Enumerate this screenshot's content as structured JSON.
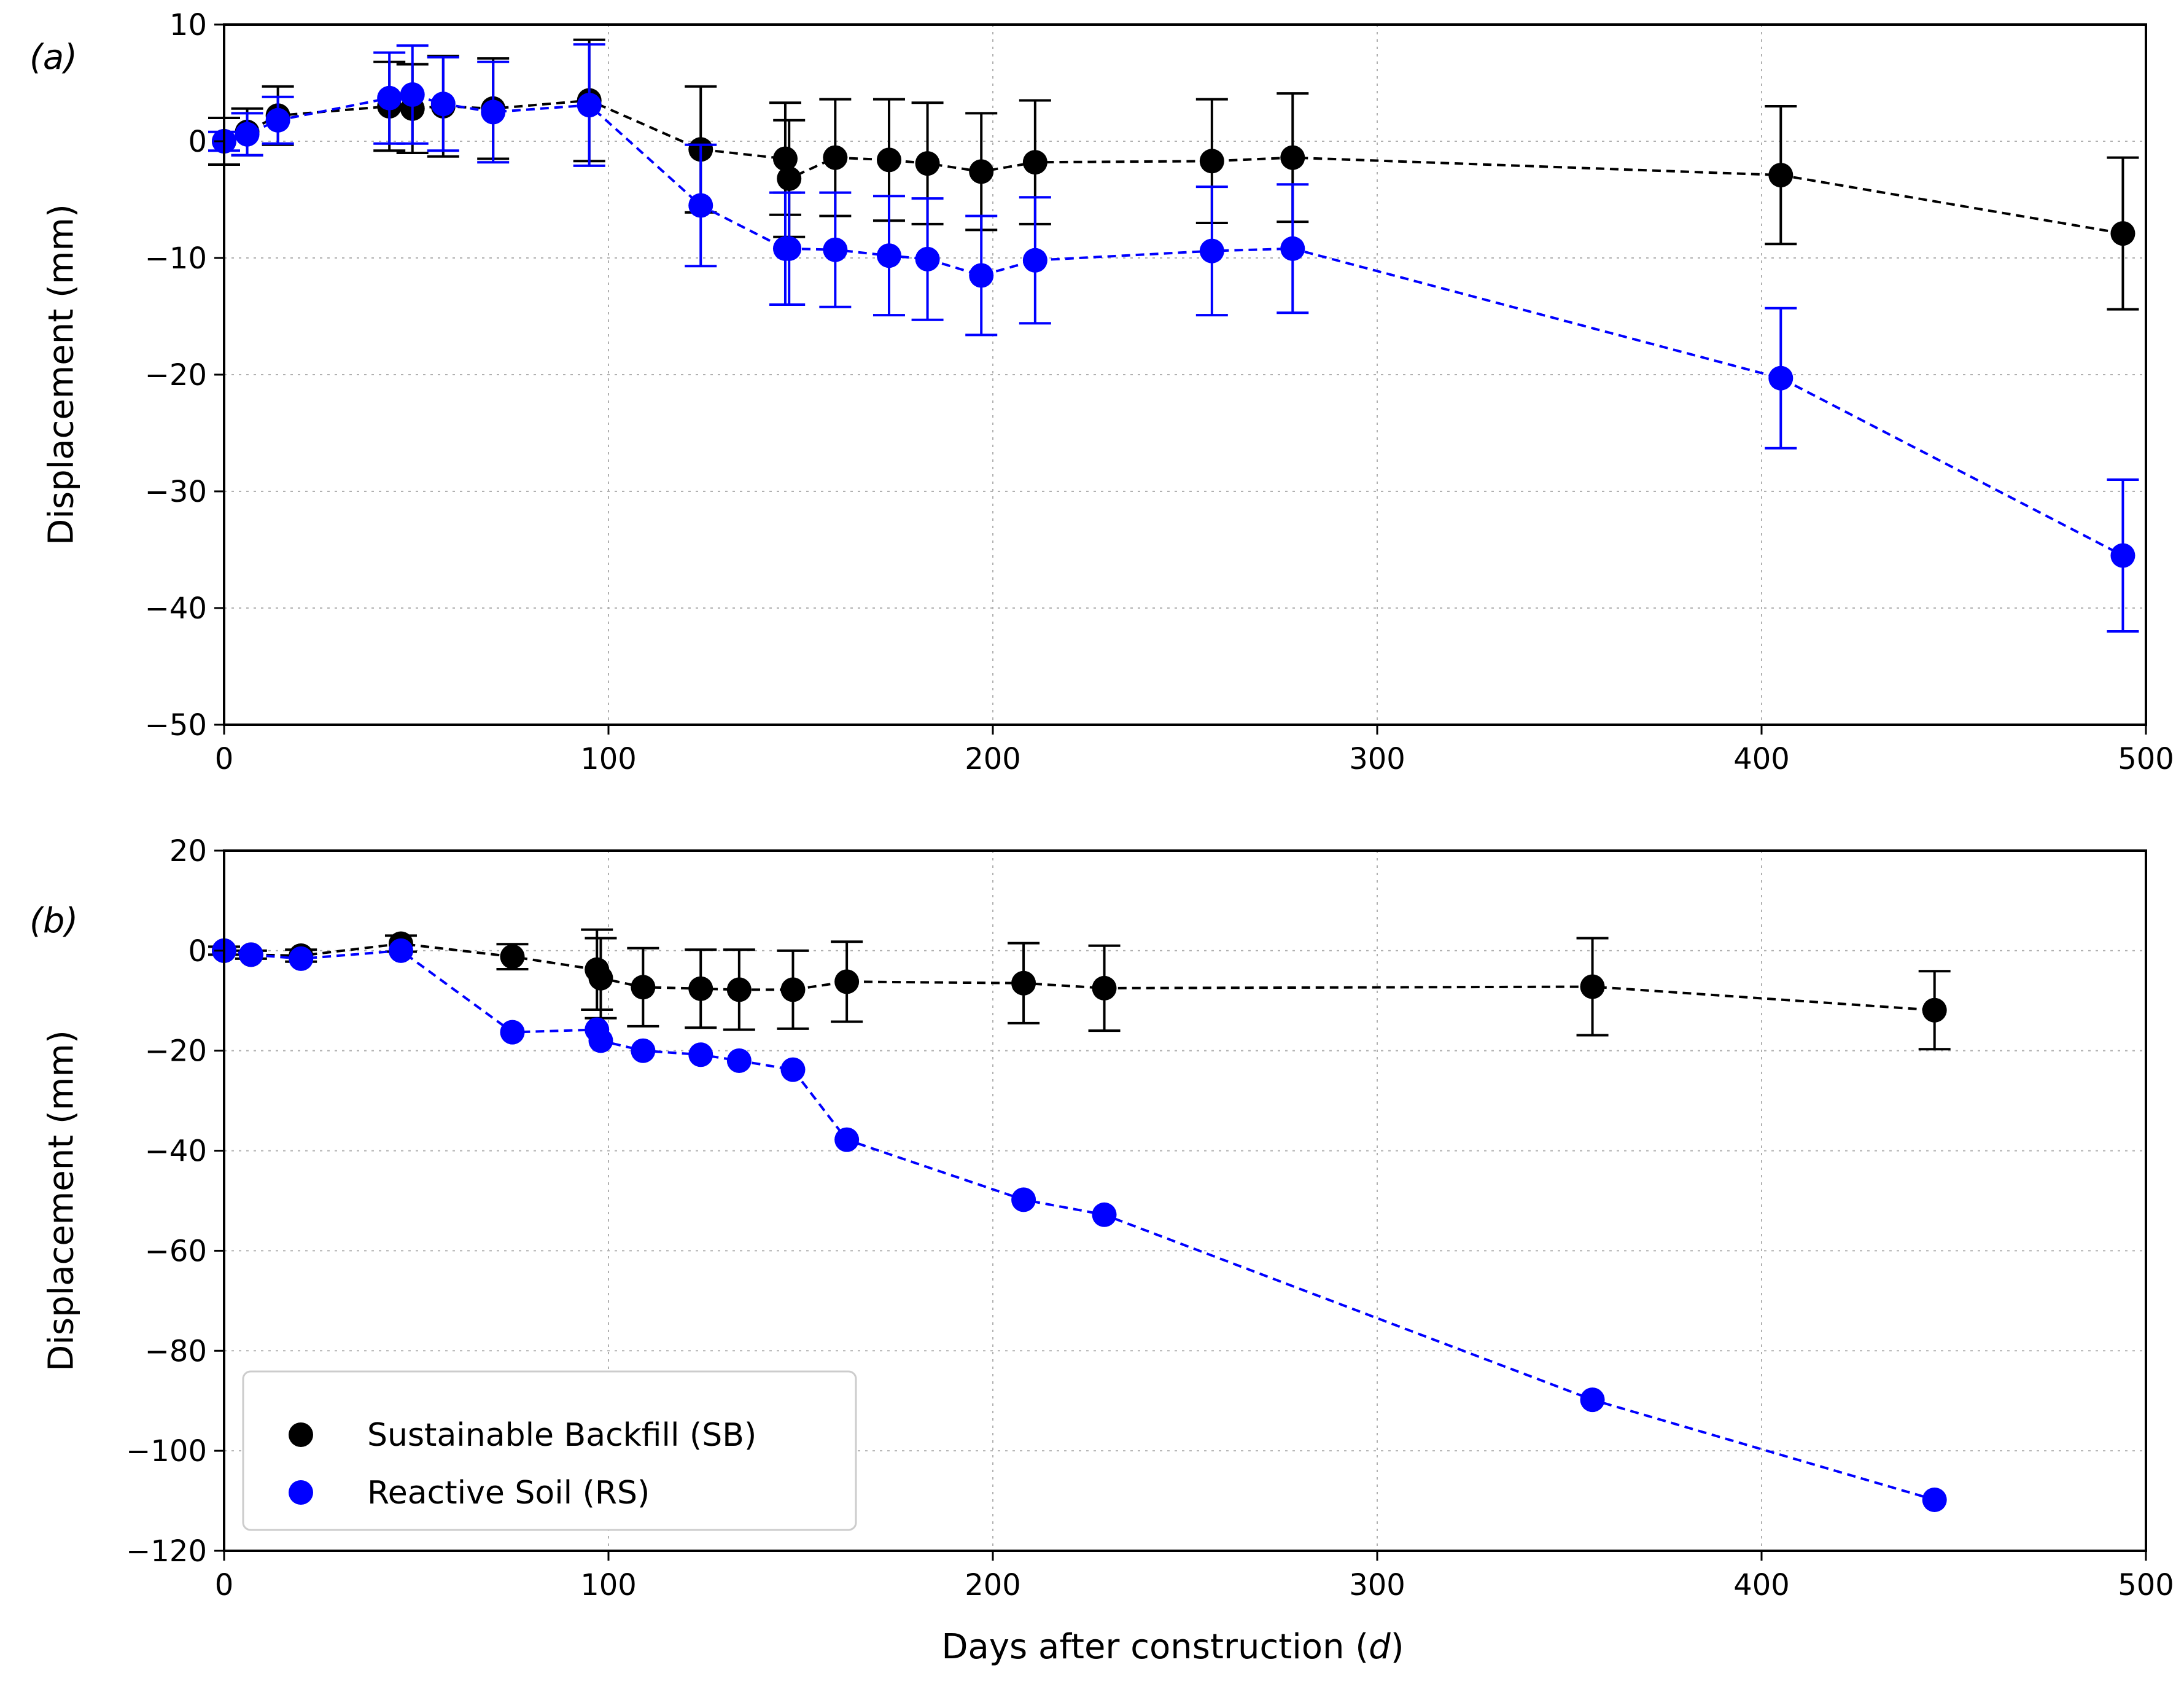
{
  "xlabel": "Days after construction (d)",
  "colors": {
    "sb": "#000000",
    "rs": "#0000ff",
    "grid": "#b0b0b0",
    "legend_edge": "#cccccc"
  },
  "legend": {
    "placement": "lower-left of panel b",
    "items": [
      "Sustainable Backfill (SB)",
      "Reactive Soil (RS)"
    ]
  },
  "chart_data": [
    {
      "type": "line",
      "panel": "(a)",
      "title": "",
      "xlabel": "",
      "ylabel": "Displacement (mm)",
      "xlim": [
        0,
        500
      ],
      "ylim": [
        -50,
        10
      ],
      "xticks": [
        0,
        100,
        200,
        300,
        400,
        500
      ],
      "yticks": [
        10,
        0,
        -10,
        -20,
        -30,
        -40,
        -50
      ],
      "grid": true,
      "series": [
        {
          "name": "Sustainable Backfill (SB)",
          "color": "#000000",
          "points": [
            {
              "x": 0,
              "y": 0,
              "err": 2
            },
            {
              "x": 6,
              "y": 0.8,
              "err": 2
            },
            {
              "x": 14,
              "y": 2.2,
              "err": 2.5
            },
            {
              "x": 43,
              "y": 3.0,
              "err": 3.8
            },
            {
              "x": 49,
              "y": 2.8,
              "err": 3.8
            },
            {
              "x": 57,
              "y": 3.0,
              "err": 4.3
            },
            {
              "x": 70,
              "y": 2.8,
              "err": 4.3
            },
            {
              "x": 95,
              "y": 3.5,
              "err": 5.2
            },
            {
              "x": 124,
              "y": -0.7,
              "err": 5.4
            },
            {
              "x": 146,
              "y": -1.5,
              "err": 4.8
            },
            {
              "x": 147,
              "y": -3.2,
              "err": 5.0
            },
            {
              "x": 159,
              "y": -1.4,
              "err": 5.0
            },
            {
              "x": 173,
              "y": -1.6,
              "err": 5.2
            },
            {
              "x": 183,
              "y": -1.9,
              "err": 5.2
            },
            {
              "x": 197,
              "y": -2.6,
              "err": 5.0
            },
            {
              "x": 211,
              "y": -1.8,
              "err": 5.3
            },
            {
              "x": 257,
              "y": -1.7,
              "err": 5.3
            },
            {
              "x": 278,
              "y": -1.4,
              "err": 5.5
            },
            {
              "x": 405,
              "y": -2.9,
              "err": 5.9
            },
            {
              "x": 494,
              "y": -7.9,
              "err": 6.5
            }
          ]
        },
        {
          "name": "Reactive Soil (RS)",
          "color": "#0000ff",
          "points": [
            {
              "x": 0,
              "y": 0,
              "err": 0.8
            },
            {
              "x": 6,
              "y": 0.6,
              "err": 1.8
            },
            {
              "x": 14,
              "y": 1.8,
              "err": 2.0
            },
            {
              "x": 43,
              "y": 3.7,
              "err": 3.9
            },
            {
              "x": 49,
              "y": 4.0,
              "err": 4.2
            },
            {
              "x": 57,
              "y": 3.2,
              "err": 4.0
            },
            {
              "x": 70,
              "y": 2.5,
              "err": 4.3
            },
            {
              "x": 95,
              "y": 3.1,
              "err": 5.2
            },
            {
              "x": 124,
              "y": -5.5,
              "err": 5.2
            },
            {
              "x": 146,
              "y": -9.2,
              "err": 4.8
            },
            {
              "x": 147,
              "y": -9.2,
              "err": 4.8
            },
            {
              "x": 159,
              "y": -9.3,
              "err": 4.9
            },
            {
              "x": 173,
              "y": -9.8,
              "err": 5.1
            },
            {
              "x": 183,
              "y": -10.1,
              "err": 5.2
            },
            {
              "x": 197,
              "y": -11.5,
              "err": 5.1
            },
            {
              "x": 211,
              "y": -10.2,
              "err": 5.4
            },
            {
              "x": 257,
              "y": -9.4,
              "err": 5.5
            },
            {
              "x": 278,
              "y": -9.2,
              "err": 5.5
            },
            {
              "x": 405,
              "y": -20.3,
              "err": 6.0
            },
            {
              "x": 494,
              "y": -35.5,
              "err": 6.5
            }
          ]
        }
      ]
    },
    {
      "type": "line",
      "panel": "(b)",
      "title": "",
      "xlabel": "Days after construction (d)",
      "ylabel": "Displacement (mm)",
      "xlim": [
        0,
        500
      ],
      "ylim": [
        -120,
        20
      ],
      "xticks": [
        0,
        100,
        200,
        300,
        400,
        500
      ],
      "yticks": [
        20,
        0,
        -20,
        -40,
        -60,
        -80,
        -100,
        -120
      ],
      "grid": true,
      "series": [
        {
          "name": "Sustainable Backfill (SB)",
          "color": "#000000",
          "points": [
            {
              "x": 0,
              "y": 0,
              "err": 0.8
            },
            {
              "x": 7,
              "y": -0.8,
              "err": 0.8
            },
            {
              "x": 20,
              "y": -1.0,
              "err": 1.2
            },
            {
              "x": 46,
              "y": 1.4,
              "err": 1.6
            },
            {
              "x": 75,
              "y": -1.2,
              "err": 2.5
            },
            {
              "x": 97,
              "y": -3.8,
              "err": 8.0
            },
            {
              "x": 98,
              "y": -5.5,
              "err": 8.0
            },
            {
              "x": 109,
              "y": -7.3,
              "err": 7.8
            },
            {
              "x": 124,
              "y": -7.6,
              "err": 7.8
            },
            {
              "x": 134,
              "y": -7.8,
              "err": 8.0
            },
            {
              "x": 148,
              "y": -7.8,
              "err": 7.8
            },
            {
              "x": 162,
              "y": -6.2,
              "err": 8.0
            },
            {
              "x": 208,
              "y": -6.5,
              "err": 8.0
            },
            {
              "x": 229,
              "y": -7.5,
              "err": 8.5
            },
            {
              "x": 356,
              "y": -7.2,
              "err": 9.7
            },
            {
              "x": 445,
              "y": -11.9,
              "err": 7.8
            }
          ]
        },
        {
          "name": "Reactive Soil (RS)",
          "color": "#0000ff",
          "points": [
            {
              "x": 0,
              "y": 0
            },
            {
              "x": 7,
              "y": -0.8
            },
            {
              "x": 20,
              "y": -1.6
            },
            {
              "x": 46,
              "y": 0.0
            },
            {
              "x": 75,
              "y": -16.3
            },
            {
              "x": 97,
              "y": -15.8
            },
            {
              "x": 98,
              "y": -18.0
            },
            {
              "x": 109,
              "y": -20.0
            },
            {
              "x": 124,
              "y": -20.8
            },
            {
              "x": 134,
              "y": -22.0
            },
            {
              "x": 148,
              "y": -23.8
            },
            {
              "x": 162,
              "y": -37.8
            },
            {
              "x": 208,
              "y": -49.8
            },
            {
              "x": 229,
              "y": -52.8
            },
            {
              "x": 356,
              "y": -89.8
            },
            {
              "x": 445,
              "y": -109.8
            }
          ]
        }
      ]
    }
  ]
}
